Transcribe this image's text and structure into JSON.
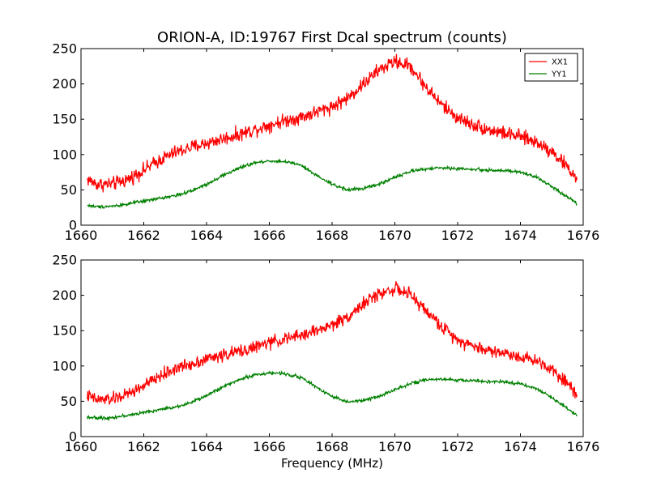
{
  "figure": {
    "title": "ORION-A, ID:19767 First Dcal spectrum (counts)",
    "xlabel": "Frequency (MHz)"
  },
  "colors": {
    "XX1": "#ff0000",
    "YY1": "#008000",
    "axes": "#000000",
    "background": "#ffffff"
  },
  "chart_data": [
    {
      "type": "line",
      "panel": "top",
      "title": "ORION-A, ID:19767 First Dcal spectrum (counts)",
      "xlabel": "",
      "ylabel": "",
      "xlim": [
        1660,
        1676
      ],
      "ylim": [
        0,
        250
      ],
      "xticks": [
        1660,
        1662,
        1664,
        1666,
        1668,
        1670,
        1672,
        1674,
        1676
      ],
      "yticks": [
        0,
        50,
        100,
        150,
        200,
        250
      ],
      "grid": false,
      "legend": {
        "placement": "top-right",
        "entries": [
          "XX1",
          "YY1"
        ]
      },
      "series": [
        {
          "name": "XX1",
          "color": "#ff0000",
          "noise": 11,
          "x": [
            1660.2,
            1660.5,
            1661.0,
            1661.5,
            1662.0,
            1662.5,
            1663.0,
            1663.5,
            1664.0,
            1664.5,
            1665.0,
            1665.5,
            1666.0,
            1666.5,
            1667.0,
            1667.5,
            1668.0,
            1668.5,
            1669.0,
            1669.5,
            1670.0,
            1670.5,
            1671.0,
            1671.5,
            1672.0,
            1672.5,
            1673.0,
            1673.5,
            1674.0,
            1674.5,
            1675.0,
            1675.5,
            1675.8
          ],
          "values": [
            65,
            58,
            58,
            65,
            78,
            92,
            103,
            110,
            116,
            122,
            128,
            135,
            142,
            148,
            153,
            160,
            168,
            180,
            200,
            220,
            232,
            225,
            195,
            170,
            152,
            142,
            135,
            130,
            125,
            118,
            105,
            82,
            65
          ]
        },
        {
          "name": "YY1",
          "color": "#008000",
          "noise": 2.5,
          "x": [
            1660.2,
            1660.5,
            1661.0,
            1661.5,
            1662.0,
            1662.5,
            1663.0,
            1663.5,
            1664.0,
            1664.5,
            1665.0,
            1665.5,
            1666.0,
            1666.5,
            1667.0,
            1667.5,
            1668.0,
            1668.5,
            1669.0,
            1669.5,
            1670.0,
            1670.5,
            1671.0,
            1671.5,
            1672.0,
            1672.5,
            1673.0,
            1673.5,
            1674.0,
            1674.5,
            1675.0,
            1675.5,
            1675.8
          ],
          "values": [
            28,
            26,
            27,
            30,
            34,
            38,
            42,
            48,
            58,
            70,
            80,
            88,
            91,
            90,
            85,
            70,
            58,
            50,
            52,
            58,
            68,
            76,
            80,
            81,
            80,
            79,
            78,
            77,
            75,
            68,
            55,
            40,
            31
          ]
        }
      ]
    },
    {
      "type": "line",
      "panel": "bottom",
      "title": "",
      "xlabel": "Frequency (MHz)",
      "ylabel": "",
      "xlim": [
        1660,
        1676
      ],
      "ylim": [
        0,
        250
      ],
      "xticks": [
        1660,
        1662,
        1664,
        1666,
        1668,
        1670,
        1672,
        1674,
        1676
      ],
      "yticks": [
        0,
        50,
        100,
        150,
        200,
        250
      ],
      "grid": false,
      "legend": null,
      "series": [
        {
          "name": "XX1",
          "color": "#ff0000",
          "noise": 10,
          "x": [
            1660.2,
            1660.5,
            1661.0,
            1661.5,
            1662.0,
            1662.5,
            1663.0,
            1663.5,
            1664.0,
            1664.5,
            1665.0,
            1665.5,
            1666.0,
            1666.5,
            1667.0,
            1667.5,
            1668.0,
            1668.5,
            1669.0,
            1669.5,
            1670.0,
            1670.5,
            1671.0,
            1671.5,
            1672.0,
            1672.5,
            1673.0,
            1673.5,
            1674.0,
            1674.5,
            1675.0,
            1675.5,
            1675.8
          ],
          "values": [
            58,
            52,
            53,
            60,
            72,
            85,
            96,
            103,
            110,
            115,
            120,
            126,
            133,
            138,
            143,
            150,
            158,
            170,
            188,
            202,
            210,
            200,
            178,
            155,
            138,
            128,
            122,
            118,
            113,
            108,
            96,
            76,
            60
          ]
        },
        {
          "name": "YY1",
          "color": "#008000",
          "noise": 2.5,
          "x": [
            1660.2,
            1660.5,
            1661.0,
            1661.5,
            1662.0,
            1662.5,
            1663.0,
            1663.5,
            1664.0,
            1664.5,
            1665.0,
            1665.5,
            1666.0,
            1666.5,
            1667.0,
            1667.5,
            1668.0,
            1668.5,
            1669.0,
            1669.5,
            1670.0,
            1670.5,
            1671.0,
            1671.5,
            1672.0,
            1672.5,
            1673.0,
            1673.5,
            1674.0,
            1674.5,
            1675.0,
            1675.5,
            1675.8
          ],
          "values": [
            28,
            26,
            27,
            30,
            34,
            38,
            42,
            48,
            58,
            70,
            80,
            87,
            90,
            89,
            84,
            70,
            57,
            49,
            51,
            57,
            67,
            75,
            80,
            81,
            80,
            79,
            78,
            77,
            75,
            68,
            55,
            40,
            30
          ]
        }
      ]
    }
  ]
}
